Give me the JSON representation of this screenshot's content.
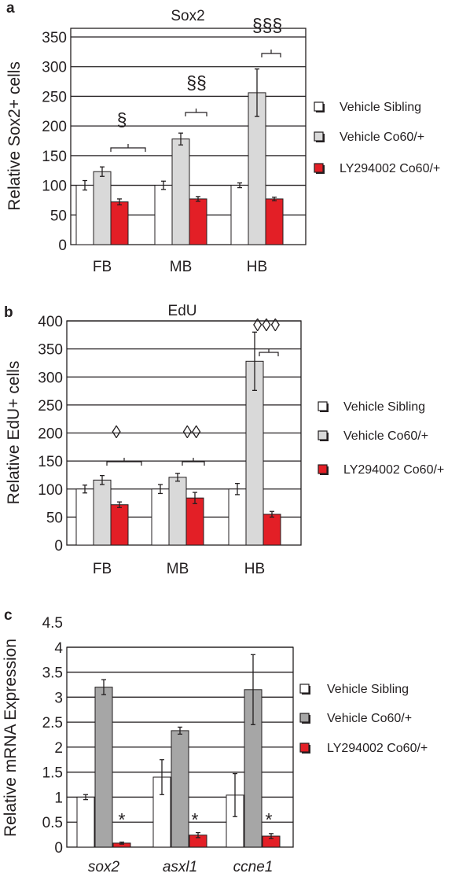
{
  "chart_data": [
    {
      "panel": "a",
      "type": "bar",
      "title": "Sox2",
      "ylabel": "Relative Sox2+ cells",
      "xlabel": "",
      "ylim": [
        0,
        350
      ],
      "yticks": [
        "0",
        "50",
        "100",
        "150",
        "200",
        "250",
        "300",
        "350"
      ],
      "grid": true,
      "legend_position": "right",
      "categories": [
        "FB",
        "MB",
        "HB"
      ],
      "series": [
        {
          "name": "Vehicle Sibling",
          "color": "#ffffff",
          "values": [
            100,
            100,
            100
          ],
          "errors": [
            8,
            7,
            4
          ]
        },
        {
          "name": "Vehicle Co60/+",
          "color": "#d9d9d9",
          "values": [
            123,
            178,
            256
          ],
          "errors": [
            8,
            10,
            40
          ]
        },
        {
          "name": "LY294002 Co60/+",
          "color": "#e31f26",
          "values": [
            72,
            77,
            77
          ],
          "errors": [
            5,
            4,
            3
          ]
        }
      ],
      "annotations": [
        "§",
        "§§",
        "§§§"
      ]
    },
    {
      "panel": "b",
      "type": "bar",
      "title": "EdU",
      "ylabel": "Relative EdU+ cells",
      "xlabel": "",
      "ylim": [
        0,
        400
      ],
      "yticks": [
        "0",
        "50",
        "100",
        "150",
        "200",
        "250",
        "300",
        "350",
        "400"
      ],
      "grid": true,
      "legend_position": "right",
      "categories": [
        "FB",
        "MB",
        "HB"
      ],
      "series": [
        {
          "name": "Vehicle Sibling",
          "color": "#ffffff",
          "values": [
            100,
            100,
            100
          ],
          "errors": [
            7,
            8,
            10
          ]
        },
        {
          "name": "Vehicle Co60/+",
          "color": "#d9d9d9",
          "values": [
            116,
            121,
            328
          ],
          "errors": [
            8,
            7,
            52
          ]
        },
        {
          "name": "LY294002 Co60/+",
          "color": "#e31f26",
          "values": [
            72,
            84,
            55
          ],
          "errors": [
            5,
            10,
            5
          ]
        }
      ],
      "annotations": [
        "◊",
        "◊◊",
        "◊◊◊"
      ]
    },
    {
      "panel": "c",
      "type": "bar",
      "title": "",
      "ylabel": "Relative mRNA Expression",
      "xlabel": "",
      "ylim": [
        0,
        4.5
      ],
      "yticks": [
        "0",
        "0.5",
        "1",
        "1.5",
        "2",
        "2.5",
        "3",
        "3.5",
        "4",
        "4.5"
      ],
      "grid": true,
      "legend_position": "right",
      "categories": [
        "sox2",
        "asxl1",
        "ccne1"
      ],
      "series": [
        {
          "name": "Vehicle Sibling",
          "color": "#ffffff",
          "values": [
            1.0,
            1.4,
            1.04
          ],
          "errors": [
            0.05,
            0.35,
            0.43
          ]
        },
        {
          "name": "Vehicle Co60/+",
          "color": "#a6a6a6",
          "values": [
            3.2,
            2.33,
            3.15
          ],
          "errors": [
            0.15,
            0.07,
            0.7
          ]
        },
        {
          "name": "LY294002 Co60/+",
          "color": "#e31f26",
          "values": [
            0.08,
            0.24,
            0.22
          ],
          "errors": [
            0.02,
            0.05,
            0.05
          ]
        }
      ],
      "annotations": [
        "*",
        "*",
        "*"
      ]
    }
  ]
}
